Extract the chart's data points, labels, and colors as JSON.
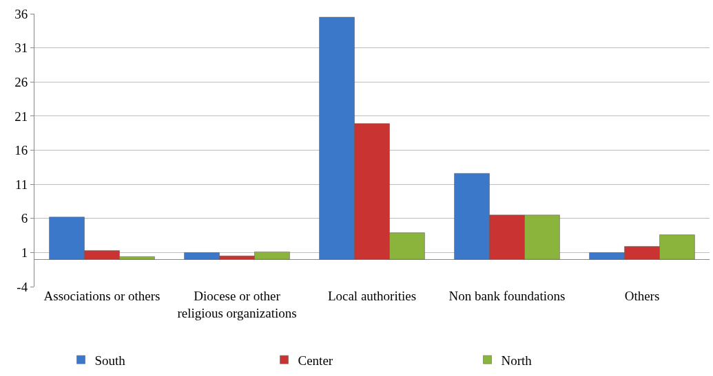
{
  "chart_data": {
    "type": "bar",
    "categories": [
      "Associations or others",
      "Diocese or other religious organizations",
      "Local authorities",
      "Non bank foundations",
      "Others"
    ],
    "series": [
      {
        "name": "South",
        "color": "#3b78c9",
        "values": [
          6.2,
          1.0,
          35.5,
          12.6,
          1.0
        ]
      },
      {
        "name": "Center",
        "color": "#c93432",
        "values": [
          1.3,
          0.5,
          19.9,
          6.5,
          1.9
        ]
      },
      {
        "name": "North",
        "color": "#8bb43c",
        "values": [
          0.4,
          1.1,
          3.9,
          6.5,
          3.6
        ]
      }
    ],
    "ylim": [
      -4,
      36
    ],
    "yticks": [
      -4,
      1,
      6,
      11,
      16,
      21,
      26,
      31,
      36
    ],
    "grid": "y",
    "legend": "bottom"
  }
}
